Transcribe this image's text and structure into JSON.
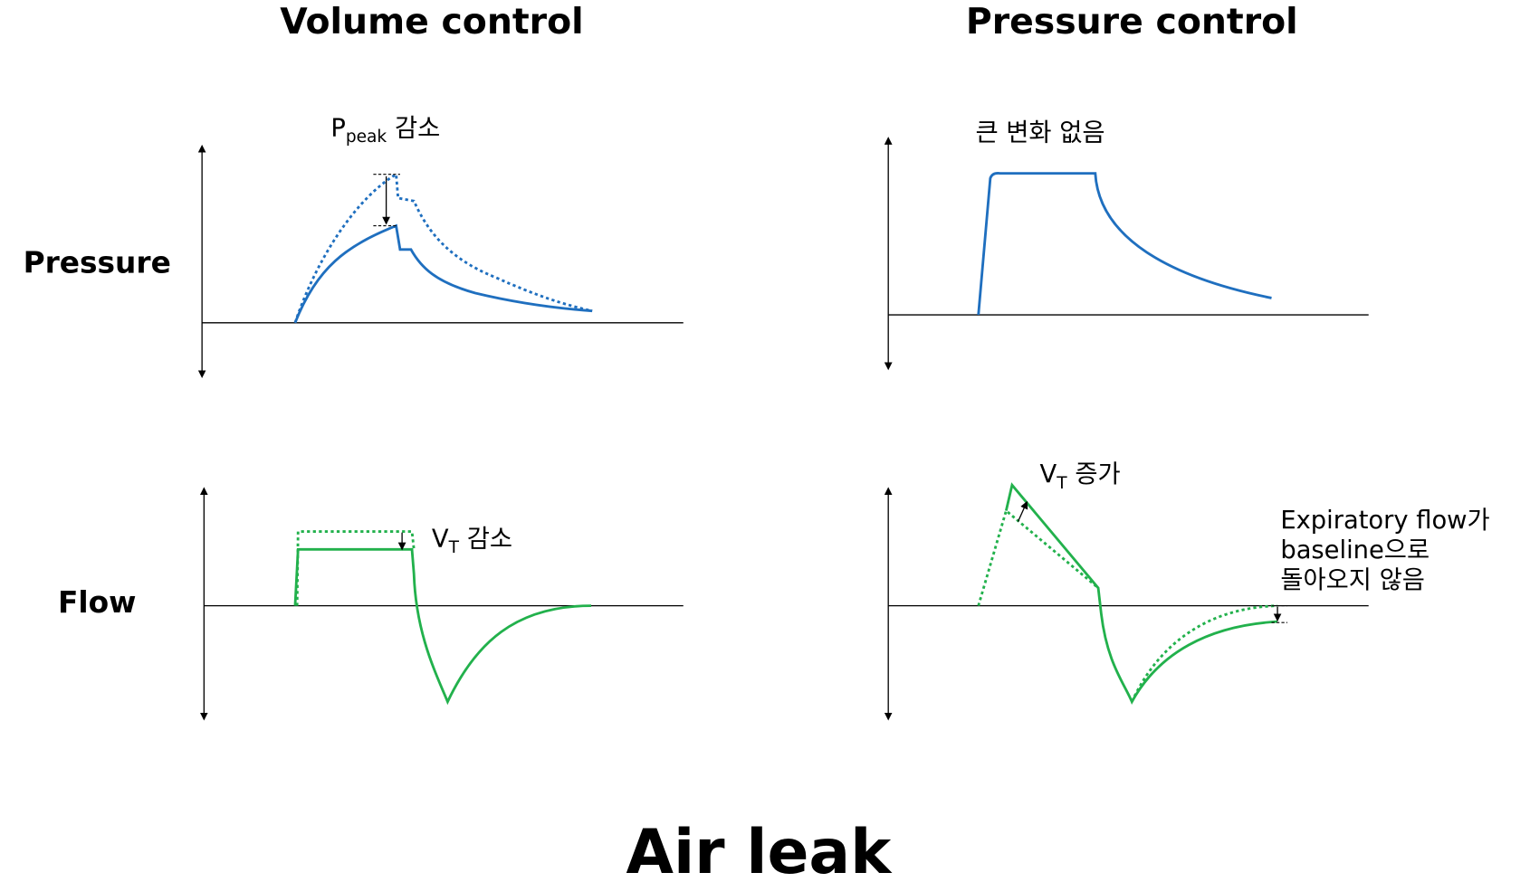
{
  "columns": [
    {
      "title": "Volume control"
    },
    {
      "title": "Pressure control"
    }
  ],
  "rows": [
    {
      "label": "Pressure"
    },
    {
      "label": "Flow"
    }
  ],
  "annotations": {
    "vc_pressure": {
      "symbol": "P",
      "subscript": "peak",
      "text": "감소"
    },
    "pc_pressure": {
      "text": "큰 변화 없음"
    },
    "vc_flow": {
      "symbol": "V",
      "subscript": "T",
      "text": "감소"
    },
    "pc_flow": {
      "symbol": "V",
      "subscript": "T",
      "text": "증가"
    },
    "pc_expiratory": {
      "lines": [
        "Expiratory flow가",
        "baseline으로",
        "돌아오지 않음"
      ]
    }
  },
  "footer": "Air leak"
}
